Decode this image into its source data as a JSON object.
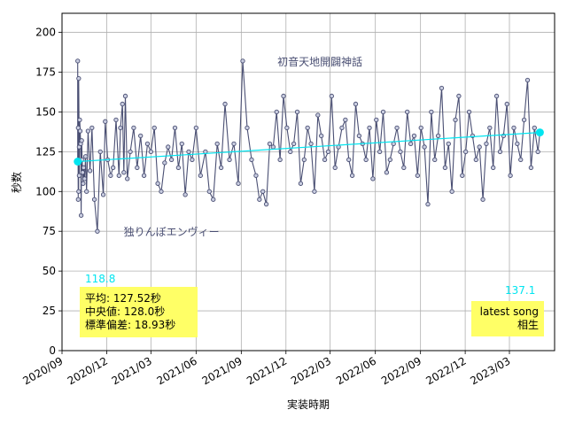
{
  "chart_data": {
    "type": "line",
    "title": "",
    "xlabel": "実装時期",
    "ylabel": "秒数",
    "ylim": [
      0,
      212
    ],
    "xlim": [
      "2020-09-01",
      "2023-06-01"
    ],
    "grid": true,
    "yticks": [
      0,
      25,
      50,
      75,
      100,
      125,
      150,
      175,
      200
    ],
    "xticks": [
      "2020/09",
      "2020/12",
      "2021/03",
      "2021/06",
      "2021/09",
      "2021/12",
      "2022/03",
      "2022/06",
      "2022/09",
      "2022/12",
      "2023/03"
    ],
    "colors": {
      "line": "#4a4f73",
      "marker_face": "#c9cde0",
      "trend": "#00e5f0",
      "endpoints": "#00e5f0",
      "stats_box": "#ffff66"
    },
    "series": [
      {
        "name": "",
        "x": [
          "2020-10-03",
          "2020-10-03",
          "2020-10-04",
          "2020-10-04",
          "2020-10-05",
          "2020-10-05",
          "2020-10-06",
          "2020-10-06",
          "2020-10-07",
          "2020-10-08",
          "2020-10-09",
          "2020-10-10",
          "2020-10-11",
          "2020-10-12",
          "2020-10-13",
          "2020-10-14",
          "2020-10-15",
          "2020-10-17",
          "2020-10-19",
          "2020-10-21",
          "2020-10-24",
          "2020-10-28",
          "2020-11-01",
          "2020-11-06",
          "2020-11-12",
          "2020-11-18",
          "2020-11-24",
          "2020-11-28",
          "2020-12-03",
          "2020-12-09",
          "2020-12-14",
          "2020-12-20",
          "2020-12-26",
          "2020-12-29",
          "2021-01-02",
          "2021-01-05",
          "2021-01-08",
          "2021-01-12",
          "2021-01-18",
          "2021-01-25",
          "2021-02-01",
          "2021-02-08",
          "2021-02-15",
          "2021-02-22",
          "2021-03-01",
          "2021-03-08",
          "2021-03-15",
          "2021-03-22",
          "2021-03-29",
          "2021-04-05",
          "2021-04-12",
          "2021-04-19",
          "2021-04-26",
          "2021-05-03",
          "2021-05-10",
          "2021-05-17",
          "2021-05-24",
          "2021-06-01",
          "2021-06-10",
          "2021-06-20",
          "2021-06-28",
          "2021-07-06",
          "2021-07-14",
          "2021-07-22",
          "2021-07-30",
          "2021-08-08",
          "2021-08-17",
          "2021-08-26",
          "2021-09-04",
          "2021-09-13",
          "2021-09-22",
          "2021-10-01",
          "2021-10-08",
          "2021-10-15",
          "2021-10-22",
          "2021-10-29",
          "2021-11-05",
          "2021-11-12",
          "2021-11-19",
          "2021-11-26",
          "2021-12-03",
          "2021-12-10",
          "2021-12-17",
          "2021-12-24",
          "2021-12-31",
          "2022-01-07",
          "2022-01-14",
          "2022-01-21",
          "2022-01-28",
          "2022-02-04",
          "2022-02-11",
          "2022-02-18",
          "2022-02-25",
          "2022-03-04",
          "2022-03-11",
          "2022-03-18",
          "2022-03-25",
          "2022-04-01",
          "2022-04-08",
          "2022-04-15",
          "2022-04-22",
          "2022-04-29",
          "2022-05-06",
          "2022-05-13",
          "2022-05-20",
          "2022-05-27",
          "2022-06-03",
          "2022-06-10",
          "2022-06-17",
          "2022-06-24",
          "2022-07-01",
          "2022-07-08",
          "2022-07-15",
          "2022-07-22",
          "2022-07-29",
          "2022-08-05",
          "2022-08-12",
          "2022-08-19",
          "2022-08-26",
          "2022-09-02",
          "2022-09-09",
          "2022-09-16",
          "2022-09-23",
          "2022-09-30",
          "2022-10-07",
          "2022-10-14",
          "2022-10-21",
          "2022-10-28",
          "2022-11-04",
          "2022-11-11",
          "2022-11-18",
          "2022-11-25",
          "2022-12-02",
          "2022-12-09",
          "2022-12-16",
          "2022-12-23",
          "2022-12-30",
          "2023-01-06",
          "2023-01-13",
          "2023-01-20",
          "2023-01-27",
          "2023-02-03",
          "2023-02-10",
          "2023-02-17",
          "2023-02-24",
          "2023-03-03",
          "2023-03-10",
          "2023-03-17",
          "2023-03-24",
          "2023-03-31",
          "2023-04-07",
          "2023-04-14",
          "2023-04-21",
          "2023-04-28",
          "2023-05-02"
        ],
        "y": [
          119,
          182,
          95,
          140,
          100,
          171,
          128,
          110,
          145,
          138,
          130,
          85,
          132,
          120,
          112,
          105,
          115,
          108,
          122,
          100,
          138,
          113,
          140,
          95,
          75,
          125,
          98,
          144,
          120,
          110,
          115,
          145,
          110,
          140,
          155,
          112,
          160,
          108,
          125,
          140,
          115,
          135,
          110,
          130,
          125,
          140,
          105,
          100,
          118,
          128,
          120,
          140,
          115,
          130,
          98,
          125,
          120,
          140,
          110,
          125,
          100,
          95,
          130,
          115,
          155,
          120,
          130,
          105,
          182,
          140,
          120,
          110,
          95,
          100,
          92,
          130,
          128,
          150,
          120,
          160,
          140,
          125,
          130,
          150,
          105,
          120,
          140,
          130,
          100,
          148,
          135,
          120,
          125,
          160,
          115,
          128,
          140,
          145,
          120,
          110,
          155,
          135,
          130,
          120,
          140,
          108,
          145,
          125,
          150,
          112,
          120,
          130,
          140,
          125,
          115,
          150,
          130,
          135,
          110,
          140,
          128,
          92,
          150,
          120,
          135,
          165,
          115,
          130,
          100,
          145,
          160,
          110,
          125,
          150,
          135,
          120,
          128,
          95,
          130,
          140,
          115,
          160,
          125,
          135,
          155,
          110,
          140,
          130,
          120,
          145,
          170,
          115,
          140,
          125,
          137
        ]
      }
    ],
    "trend": {
      "start": [
        "2020-10-03",
        118.8
      ],
      "end": [
        "2023-05-02",
        137.1
      ],
      "start_label": "118.8",
      "end_label": "137.1"
    },
    "annotations": [
      {
        "text": "初音天地開闢神話",
        "x": "2021-11-10",
        "y": 182
      },
      {
        "text": "独りんぼエンヴィー",
        "x": "2021-01-01",
        "y": 75
      }
    ],
    "stats_box": {
      "mean": "平均: 127.52秒",
      "median": "中央値: 128.0秒",
      "std": "標準偏差: 18.93秒"
    },
    "latest_box": {
      "line1": "latest song",
      "line2": "相生"
    }
  }
}
